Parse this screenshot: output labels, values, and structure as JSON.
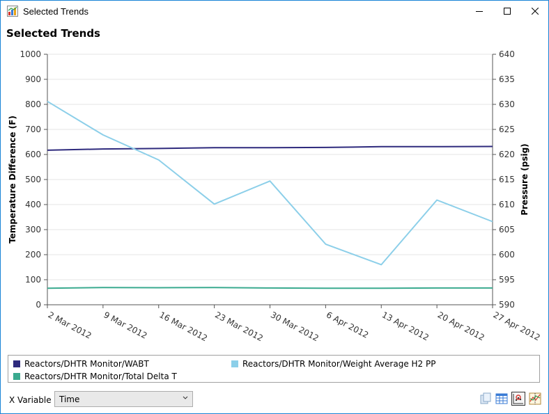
{
  "window": {
    "title": "Selected Trends",
    "controls": {
      "minimize": "minimize-icon",
      "maximize": "maximize-icon",
      "close": "close-icon"
    }
  },
  "page_title": "Selected Trends",
  "chart_data": {
    "type": "line",
    "x": [
      "2 Mar 2012",
      "9 Mar 2012",
      "16 Mar 2012",
      "23 Mar 2012",
      "30 Mar 2012",
      "6 Apr 2012",
      "13 Apr 2012",
      "20 Apr 2012",
      "27 Apr 2012"
    ],
    "x_ticks": [
      "2 Mar 2012",
      "9 Mar 2012",
      "16 Mar 2012",
      "23 Mar 2012",
      "30 Mar 2012",
      "6 Apr 2012",
      "13 Apr 2012",
      "20 Apr 2012",
      "27 Apr 2012"
    ],
    "ylabel": "Temperature Difference (F)",
    "ylim": [
      0,
      1000
    ],
    "y_ticks": [
      0,
      100,
      200,
      300,
      400,
      500,
      600,
      700,
      800,
      900,
      1000
    ],
    "y2label": "Pressure (psig)",
    "y2lim": [
      590,
      640
    ],
    "y2_ticks": [
      590,
      595,
      600,
      605,
      610,
      615,
      620,
      625,
      630,
      635,
      640
    ],
    "grid": true,
    "legend_placement": "bottom",
    "series": [
      {
        "name": "Reactors/DHTR Monitor/WABT",
        "axis": "left",
        "color": "#2e2a7d",
        "values": [
          617,
          622,
          624,
          627,
          627,
          628,
          631,
          631,
          632
        ]
      },
      {
        "name": "Reactors/DHTR Monitor/Weight Average H2 PP",
        "axis": "right",
        "color": "#8ccfe9",
        "values": [
          630.6,
          623.9,
          618.9,
          610.1,
          614.7,
          602.1,
          598.0,
          610.9,
          606.6
        ]
      },
      {
        "name": "Reactors/DHTR Monitor/Total Delta T",
        "axis": "left",
        "color": "#3aaa8f",
        "values": [
          66,
          69,
          68,
          69,
          67,
          66,
          66,
          67,
          67
        ]
      }
    ]
  },
  "legend": [
    {
      "label": "Reactors/DHTR Monitor/WABT",
      "color": "#2e2a7d"
    },
    {
      "label": "Reactors/DHTR Monitor/Weight Average H2 PP",
      "color": "#8ccfe9"
    },
    {
      "label": "Reactors/DHTR Monitor/Total Delta T",
      "color": "#3aaa8f"
    }
  ],
  "x_variable": {
    "label": "X Variable",
    "value": "Time"
  },
  "toolbar": {
    "icons": [
      "copy-icon",
      "table-icon",
      "scatter-plot-icon",
      "trend-plot-icon"
    ]
  }
}
